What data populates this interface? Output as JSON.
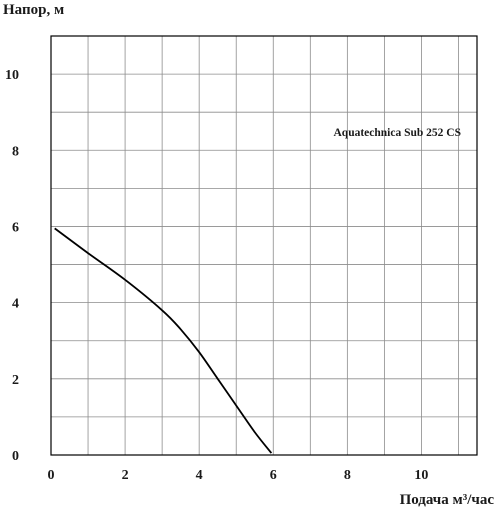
{
  "chart_data": {
    "type": "line",
    "ylabel": "Напор, м",
    "xlabel": "Подача  м³/час",
    "xlim": [
      0,
      11.5
    ],
    "ylim": [
      0,
      11
    ],
    "x_ticks": [
      0,
      2,
      4,
      6,
      8,
      10
    ],
    "y_ticks": [
      0,
      2,
      4,
      6,
      8,
      10
    ],
    "grid": true,
    "series": [
      {
        "name": "Aquatechnica Sub 252 CS",
        "color": "#000000",
        "x": [
          0.1,
          1.0,
          2.0,
          3.0,
          3.5,
          4.0,
          4.5,
          5.0,
          5.5,
          5.95
        ],
        "y": [
          5.95,
          5.3,
          4.6,
          3.8,
          3.3,
          2.7,
          2.0,
          1.3,
          0.6,
          0.05
        ]
      }
    ]
  }
}
